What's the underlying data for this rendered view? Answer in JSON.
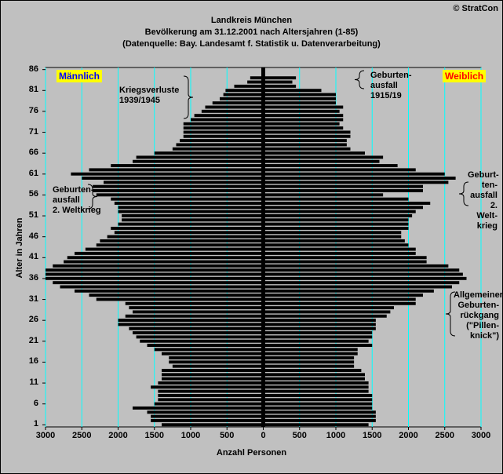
{
  "copyright": "© StratCon",
  "title_lines": [
    "Landkreis München",
    "Bevölkerung am 31.12.2001 nach Altersjahren (1-85)",
    "(Datenquelle: Bay. Landesamt f. Statistik u. Datenverarbeitung)"
  ],
  "chart_data": {
    "type": "bar",
    "orientation": "horizontal-population-pyramid",
    "xlabel": "Anzahl Personen",
    "ylabel": "Alter in Jahren",
    "xlim": [
      0,
      3000
    ],
    "x_ticks": [
      3000,
      2500,
      2000,
      1500,
      1000,
      500,
      0,
      500,
      1000,
      1500,
      2000,
      2500,
      3000
    ],
    "y_ticks": [
      1,
      6,
      11,
      16,
      21,
      26,
      31,
      36,
      41,
      46,
      51,
      56,
      61,
      66,
      71,
      76,
      81,
      86
    ],
    "grid": "vertical",
    "ages_top_to_bottom": [
      86,
      85,
      84,
      83,
      82,
      81,
      80,
      79,
      78,
      77,
      76,
      75,
      74,
      73,
      72,
      71,
      70,
      69,
      68,
      67,
      66,
      65,
      64,
      63,
      62,
      61,
      60,
      59,
      58,
      57,
      56,
      55,
      54,
      53,
      52,
      51,
      50,
      49,
      48,
      47,
      46,
      45,
      44,
      43,
      42,
      41,
      40,
      39,
      38,
      37,
      36,
      35,
      34,
      33,
      32,
      31,
      30,
      29,
      28,
      27,
      26,
      25,
      24,
      23,
      22,
      21,
      20,
      19,
      18,
      17,
      16,
      15,
      14,
      13,
      12,
      11,
      10,
      9,
      8,
      7,
      6,
      5,
      4,
      3,
      2,
      1
    ],
    "series": [
      {
        "name": "Männlich",
        "color": "#000000",
        "values": [
          0,
          0,
          180,
          220,
          400,
          520,
          550,
          600,
          700,
          800,
          850,
          950,
          1000,
          1100,
          1100,
          1100,
          1100,
          1150,
          1200,
          1250,
          1500,
          1750,
          1800,
          2100,
          2400,
          2650,
          2500,
          2200,
          2350,
          2350,
          2300,
          2100,
          2050,
          2000,
          2000,
          1950,
          1950,
          2000,
          2100,
          2050,
          2150,
          2250,
          2300,
          2450,
          2600,
          2700,
          2750,
          2900,
          3000,
          3000,
          3000,
          2900,
          2800,
          2600,
          2400,
          2300,
          1900,
          1850,
          1800,
          1900,
          2000,
          2000,
          1850,
          1800,
          1750,
          1700,
          1600,
          1500,
          1400,
          1300,
          1300,
          1250,
          1400,
          1400,
          1400,
          1450,
          1550,
          1450,
          1450,
          1450,
          1500,
          1800,
          1600,
          1550,
          1550,
          1400
        ]
      },
      {
        "name": "Weiblich",
        "color": "#000000",
        "values": [
          0,
          0,
          450,
          400,
          450,
          800,
          1000,
          1000,
          1000,
          1100,
          1050,
          1100,
          1100,
          1050,
          1100,
          1200,
          1200,
          1150,
          1150,
          1200,
          1400,
          1650,
          1600,
          1850,
          2100,
          2500,
          2650,
          2550,
          2200,
          2200,
          1650,
          2000,
          2300,
          2200,
          2100,
          2050,
          2000,
          2000,
          2000,
          1900,
          1900,
          1950,
          2000,
          2100,
          2100,
          2250,
          2250,
          2550,
          2700,
          2750,
          2800,
          2700,
          2600,
          2350,
          2200,
          2100,
          2100,
          1800,
          1750,
          1700,
          1550,
          1550,
          1550,
          1500,
          1500,
          1450,
          1500,
          1300,
          1300,
          1250,
          1250,
          1250,
          1350,
          1400,
          1400,
          1450,
          1450,
          1450,
          1500,
          1500,
          1500,
          1500,
          1550,
          1550,
          1550,
          1450
        ]
      }
    ]
  },
  "legend": {
    "male": "Männlich",
    "female": "Weiblich"
  },
  "annotations": {
    "kriegsverluste": [
      "Kriegsverluste",
      "1939/1945"
    ],
    "geburtenausfall_1915": [
      "Geburten-",
      "ausfall",
      "1915/19"
    ],
    "geburtenausfall_2wk_left": [
      "Geburten-",
      "ausfall",
      "2. Weltkrieg"
    ],
    "geburtenausfall_2wk_right": [
      "Geburt-",
      "ten-",
      "ausfall",
      "2. Welt-",
      "krieg"
    ],
    "pillenknick": [
      "Allgemeiner",
      "Geburten-",
      "rückgang",
      "(\"Pillen-",
      "knick\")"
    ]
  },
  "colors": {
    "background": "#c0c0c0",
    "gridline": "#00ffff",
    "bar": "#000000",
    "badge": "#ffff00",
    "badge_text": "#0000ff",
    "badge_text_female": "#ff0000"
  }
}
